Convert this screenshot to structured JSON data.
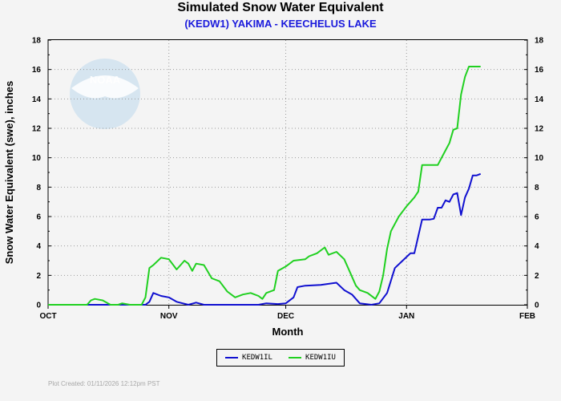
{
  "chart_data": {
    "type": "line",
    "title": "Simulated Snow Water Equivalent",
    "subtitle": "(KEDW1) YAKIMA - KEECHELUS LAKE",
    "xlabel": "Month",
    "ylabel": "Snow Water Equivalent (swe),  inches",
    "x_tick_labels": [
      "OCT",
      "NOV",
      "DEC",
      "JAN",
      "FEB"
    ],
    "x_range": [
      "2025-10-01",
      "2026-02-01"
    ],
    "ylim": [
      0,
      18
    ],
    "y_ticks": [
      0,
      2,
      4,
      6,
      8,
      10,
      12,
      14,
      16,
      18
    ],
    "grid": "dotted",
    "legend_position": "bottom-center",
    "series": [
      {
        "name": "KEDW1IL",
        "color": "#1010d0",
        "points": [
          [
            "2025-10-01",
            0
          ],
          [
            "2025-10-20",
            0
          ],
          [
            "2025-10-26",
            0
          ],
          [
            "2025-10-27",
            0.2
          ],
          [
            "2025-10-28",
            0.8
          ],
          [
            "2025-10-30",
            0.6
          ],
          [
            "2025-11-01",
            0.5
          ],
          [
            "2025-11-03",
            0.2
          ],
          [
            "2025-11-06",
            0
          ],
          [
            "2025-11-08",
            0.15
          ],
          [
            "2025-11-10",
            0
          ],
          [
            "2025-11-24",
            0
          ],
          [
            "2025-11-26",
            0.1
          ],
          [
            "2025-11-29",
            0.05
          ],
          [
            "2025-12-01",
            0.1
          ],
          [
            "2025-12-03",
            0.5
          ],
          [
            "2025-12-04",
            1.2
          ],
          [
            "2025-12-06",
            1.3
          ],
          [
            "2025-12-10",
            1.35
          ],
          [
            "2025-12-14",
            1.5
          ],
          [
            "2025-12-16",
            1.0
          ],
          [
            "2025-12-18",
            0.7
          ],
          [
            "2025-12-20",
            0.1
          ],
          [
            "2025-12-23",
            0
          ],
          [
            "2025-12-25",
            0.1
          ],
          [
            "2025-12-27",
            0.8
          ],
          [
            "2025-12-29",
            2.5
          ],
          [
            "2025-12-31",
            3.0
          ],
          [
            "2026-01-02",
            3.5
          ],
          [
            "2026-01-03",
            3.5
          ],
          [
            "2026-01-05",
            5.8
          ],
          [
            "2026-01-07",
            5.8
          ],
          [
            "2026-01-08",
            5.85
          ],
          [
            "2026-01-09",
            6.6
          ],
          [
            "2026-01-10",
            6.6
          ],
          [
            "2026-01-11",
            7.1
          ],
          [
            "2026-01-12",
            7.0
          ],
          [
            "2026-01-13",
            7.5
          ],
          [
            "2026-01-14",
            7.6
          ],
          [
            "2026-01-15",
            6.1
          ],
          [
            "2026-01-16",
            7.3
          ],
          [
            "2026-01-17",
            7.9
          ],
          [
            "2026-01-18",
            8.8
          ],
          [
            "2026-01-19",
            8.8
          ],
          [
            "2026-01-20",
            8.9
          ]
        ]
      },
      {
        "name": "KEDW1IU",
        "color": "#20d020",
        "points": [
          [
            "2025-10-01",
            0
          ],
          [
            "2025-10-11",
            0
          ],
          [
            "2025-10-12",
            0.3
          ],
          [
            "2025-10-13",
            0.4
          ],
          [
            "2025-10-15",
            0.3
          ],
          [
            "2025-10-17",
            0
          ],
          [
            "2025-10-19",
            0
          ],
          [
            "2025-10-20",
            0.1
          ],
          [
            "2025-10-22",
            0
          ],
          [
            "2025-10-25",
            0
          ],
          [
            "2025-10-26",
            0.5
          ],
          [
            "2025-10-27",
            2.5
          ],
          [
            "2025-10-28",
            2.7
          ],
          [
            "2025-10-30",
            3.2
          ],
          [
            "2025-11-01",
            3.1
          ],
          [
            "2025-11-03",
            2.4
          ],
          [
            "2025-11-05",
            3.0
          ],
          [
            "2025-11-06",
            2.8
          ],
          [
            "2025-11-07",
            2.3
          ],
          [
            "2025-11-08",
            2.8
          ],
          [
            "2025-11-10",
            2.7
          ],
          [
            "2025-11-12",
            1.8
          ],
          [
            "2025-11-14",
            1.6
          ],
          [
            "2025-11-16",
            0.9
          ],
          [
            "2025-11-18",
            0.5
          ],
          [
            "2025-11-20",
            0.7
          ],
          [
            "2025-11-22",
            0.8
          ],
          [
            "2025-11-24",
            0.6
          ],
          [
            "2025-11-25",
            0.4
          ],
          [
            "2025-11-26",
            0.8
          ],
          [
            "2025-11-28",
            1.0
          ],
          [
            "2025-11-29",
            2.3
          ],
          [
            "2025-12-01",
            2.6
          ],
          [
            "2025-12-03",
            3.0
          ],
          [
            "2025-12-06",
            3.1
          ],
          [
            "2025-12-07",
            3.3
          ],
          [
            "2025-12-09",
            3.5
          ],
          [
            "2025-12-11",
            3.9
          ],
          [
            "2025-12-12",
            3.4
          ],
          [
            "2025-12-14",
            3.6
          ],
          [
            "2025-12-16",
            3.1
          ],
          [
            "2025-12-17",
            2.5
          ],
          [
            "2025-12-19",
            1.3
          ],
          [
            "2025-12-20",
            1.0
          ],
          [
            "2025-12-22",
            0.8
          ],
          [
            "2025-12-24",
            0.4
          ],
          [
            "2025-12-25",
            0.9
          ],
          [
            "2025-12-26",
            2.0
          ],
          [
            "2025-12-27",
            3.8
          ],
          [
            "2025-12-28",
            5.0
          ],
          [
            "2025-12-30",
            6.0
          ],
          [
            "2026-01-01",
            6.7
          ],
          [
            "2026-01-03",
            7.3
          ],
          [
            "2026-01-04",
            7.7
          ],
          [
            "2026-01-05",
            9.5
          ],
          [
            "2026-01-07",
            9.5
          ],
          [
            "2026-01-09",
            9.5
          ],
          [
            "2026-01-10",
            10.0
          ],
          [
            "2026-01-11",
            10.5
          ],
          [
            "2026-01-12",
            11.0
          ],
          [
            "2026-01-13",
            11.9
          ],
          [
            "2026-01-14",
            12.0
          ],
          [
            "2026-01-15",
            14.3
          ],
          [
            "2026-01-16",
            15.5
          ],
          [
            "2026-01-17",
            16.2
          ],
          [
            "2026-01-20",
            16.2
          ]
        ]
      }
    ]
  },
  "footer": "Plot Created: 01/11/2026 12:12pm PST",
  "logo": {
    "text": "NOAA",
    "color": "#3f9be0"
  }
}
